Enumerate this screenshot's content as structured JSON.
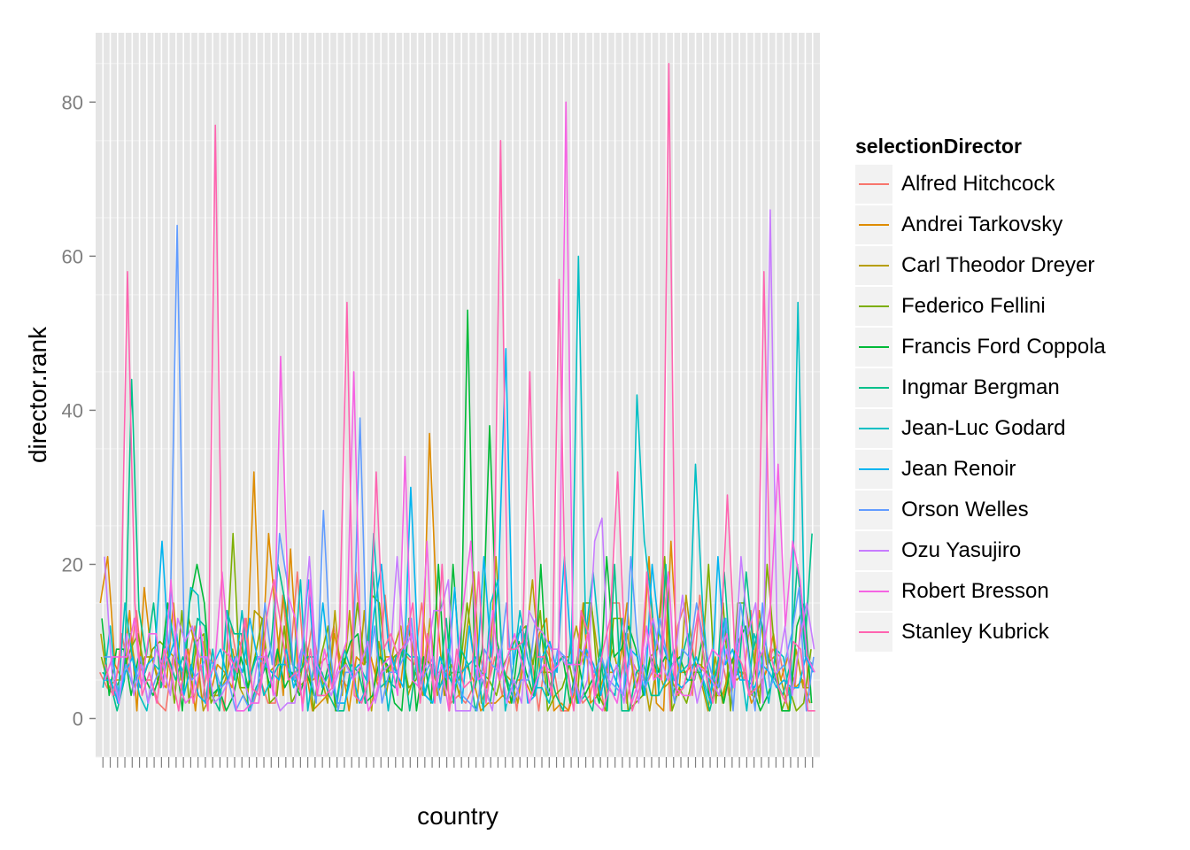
{
  "chart_data": {
    "type": "line",
    "xlabel": "country",
    "ylabel": "director.rank",
    "ylim": [
      -5,
      89
    ],
    "yticks": [
      0,
      20,
      40,
      60,
      80
    ],
    "x_category_count": 98,
    "grid": true,
    "legend_position": "right",
    "legend": {
      "title": "selectionDirector",
      "entries": [
        {
          "name": "Alfred Hitchcock",
          "color": "#F8766D"
        },
        {
          "name": "Andrei Tarkovsky",
          "color": "#DE8C00"
        },
        {
          "name": "Carl Theodor Dreyer",
          "color": "#B79F00"
        },
        {
          "name": "Federico Fellini",
          "color": "#7CAE00"
        },
        {
          "name": "Francis Ford Coppola",
          "color": "#00BA38"
        },
        {
          "name": "Ingmar Bergman",
          "color": "#00C08B"
        },
        {
          "name": "Jean-Luc Godard",
          "color": "#00BFC4"
        },
        {
          "name": "Jean Renoir",
          "color": "#00B4F0"
        },
        {
          "name": "Orson Welles",
          "color": "#619CFF"
        },
        {
          "name": "Ozu Yasujiro",
          "color": "#C77CFF"
        },
        {
          "name": "Robert Bresson",
          "color": "#F564E3"
        },
        {
          "name": "Stanley Kubrick",
          "color": "#FF64B0"
        }
      ]
    },
    "peaks": [
      {
        "x": 3,
        "y": 58,
        "series": 11
      },
      {
        "x": 4,
        "y": 44,
        "series": 5
      },
      {
        "x": 10,
        "y": 64,
        "series": 8
      },
      {
        "x": 15,
        "y": 77,
        "series": 11
      },
      {
        "x": 21,
        "y": 32,
        "series": 1
      },
      {
        "x": 24,
        "y": 47,
        "series": 10
      },
      {
        "x": 30,
        "y": 27,
        "series": 8
      },
      {
        "x": 33,
        "y": 54,
        "series": 11
      },
      {
        "x": 34,
        "y": 45,
        "series": 10
      },
      {
        "x": 35,
        "y": 39,
        "series": 8
      },
      {
        "x": 37,
        "y": 32,
        "series": 11
      },
      {
        "x": 41,
        "y": 34,
        "series": 10
      },
      {
        "x": 42,
        "y": 30,
        "series": 7
      },
      {
        "x": 45,
        "y": 37,
        "series": 1
      },
      {
        "x": 50,
        "y": 53,
        "series": 4
      },
      {
        "x": 53,
        "y": 38,
        "series": 4
      },
      {
        "x": 54,
        "y": 75,
        "series": 11
      },
      {
        "x": 55,
        "y": 48,
        "series": 7
      },
      {
        "x": 58,
        "y": 45,
        "series": 11
      },
      {
        "x": 62,
        "y": 57,
        "series": 11
      },
      {
        "x": 63,
        "y": 80,
        "series": 10
      },
      {
        "x": 65,
        "y": 60,
        "series": 6
      },
      {
        "x": 68,
        "y": 26,
        "series": 9
      },
      {
        "x": 70,
        "y": 32,
        "series": 11
      },
      {
        "x": 73,
        "y": 42,
        "series": 6
      },
      {
        "x": 77,
        "y": 85,
        "series": 11
      },
      {
        "x": 78,
        "y": 23,
        "series": 1
      },
      {
        "x": 81,
        "y": 33,
        "series": 6
      },
      {
        "x": 83,
        "y": 20,
        "series": 3
      },
      {
        "x": 85,
        "y": 29,
        "series": 11
      },
      {
        "x": 87,
        "y": 21,
        "series": 9
      },
      {
        "x": 90,
        "y": 58,
        "series": 11
      },
      {
        "x": 91,
        "y": 66,
        "series": 9
      },
      {
        "x": 92,
        "y": 33,
        "series": 10
      },
      {
        "x": 95,
        "y": 54,
        "series": 6
      }
    ]
  }
}
